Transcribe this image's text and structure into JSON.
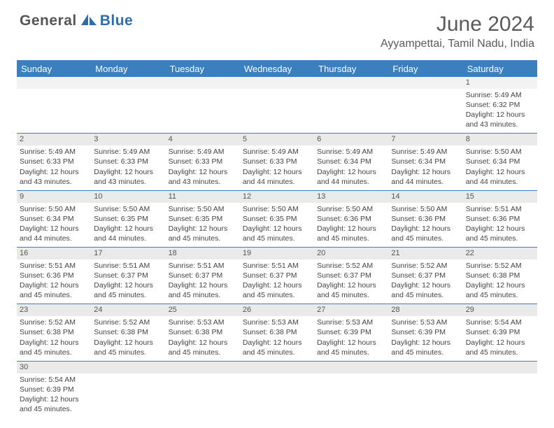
{
  "brand": {
    "part1": "General",
    "part2": "Blue"
  },
  "title": "June 2024",
  "location": "Ayyampettai, Tamil Nadu, India",
  "colors": {
    "header_bg": "#3b7fbf",
    "header_text": "#ffffff",
    "daynum_bg": "#eaeaea",
    "border": "#3b7fbf",
    "brand_gray": "#565656",
    "brand_blue": "#2f6da8",
    "text": "#444444"
  },
  "weekdays": [
    "Sunday",
    "Monday",
    "Tuesday",
    "Wednesday",
    "Thursday",
    "Friday",
    "Saturday"
  ],
  "weeks": [
    [
      null,
      null,
      null,
      null,
      null,
      null,
      {
        "n": "1",
        "sr": "5:49 AM",
        "ss": "6:32 PM",
        "dl": "12 hours and 43 minutes."
      }
    ],
    [
      {
        "n": "2",
        "sr": "5:49 AM",
        "ss": "6:33 PM",
        "dl": "12 hours and 43 minutes."
      },
      {
        "n": "3",
        "sr": "5:49 AM",
        "ss": "6:33 PM",
        "dl": "12 hours and 43 minutes."
      },
      {
        "n": "4",
        "sr": "5:49 AM",
        "ss": "6:33 PM",
        "dl": "12 hours and 43 minutes."
      },
      {
        "n": "5",
        "sr": "5:49 AM",
        "ss": "6:33 PM",
        "dl": "12 hours and 44 minutes."
      },
      {
        "n": "6",
        "sr": "5:49 AM",
        "ss": "6:34 PM",
        "dl": "12 hours and 44 minutes."
      },
      {
        "n": "7",
        "sr": "5:49 AM",
        "ss": "6:34 PM",
        "dl": "12 hours and 44 minutes."
      },
      {
        "n": "8",
        "sr": "5:50 AM",
        "ss": "6:34 PM",
        "dl": "12 hours and 44 minutes."
      }
    ],
    [
      {
        "n": "9",
        "sr": "5:50 AM",
        "ss": "6:34 PM",
        "dl": "12 hours and 44 minutes."
      },
      {
        "n": "10",
        "sr": "5:50 AM",
        "ss": "6:35 PM",
        "dl": "12 hours and 44 minutes."
      },
      {
        "n": "11",
        "sr": "5:50 AM",
        "ss": "6:35 PM",
        "dl": "12 hours and 45 minutes."
      },
      {
        "n": "12",
        "sr": "5:50 AM",
        "ss": "6:35 PM",
        "dl": "12 hours and 45 minutes."
      },
      {
        "n": "13",
        "sr": "5:50 AM",
        "ss": "6:36 PM",
        "dl": "12 hours and 45 minutes."
      },
      {
        "n": "14",
        "sr": "5:50 AM",
        "ss": "6:36 PM",
        "dl": "12 hours and 45 minutes."
      },
      {
        "n": "15",
        "sr": "5:51 AM",
        "ss": "6:36 PM",
        "dl": "12 hours and 45 minutes."
      }
    ],
    [
      {
        "n": "16",
        "sr": "5:51 AM",
        "ss": "6:36 PM",
        "dl": "12 hours and 45 minutes."
      },
      {
        "n": "17",
        "sr": "5:51 AM",
        "ss": "6:37 PM",
        "dl": "12 hours and 45 minutes."
      },
      {
        "n": "18",
        "sr": "5:51 AM",
        "ss": "6:37 PM",
        "dl": "12 hours and 45 minutes."
      },
      {
        "n": "19",
        "sr": "5:51 AM",
        "ss": "6:37 PM",
        "dl": "12 hours and 45 minutes."
      },
      {
        "n": "20",
        "sr": "5:52 AM",
        "ss": "6:37 PM",
        "dl": "12 hours and 45 minutes."
      },
      {
        "n": "21",
        "sr": "5:52 AM",
        "ss": "6:37 PM",
        "dl": "12 hours and 45 minutes."
      },
      {
        "n": "22",
        "sr": "5:52 AM",
        "ss": "6:38 PM",
        "dl": "12 hours and 45 minutes."
      }
    ],
    [
      {
        "n": "23",
        "sr": "5:52 AM",
        "ss": "6:38 PM",
        "dl": "12 hours and 45 minutes."
      },
      {
        "n": "24",
        "sr": "5:52 AM",
        "ss": "6:38 PM",
        "dl": "12 hours and 45 minutes."
      },
      {
        "n": "25",
        "sr": "5:53 AM",
        "ss": "6:38 PM",
        "dl": "12 hours and 45 minutes."
      },
      {
        "n": "26",
        "sr": "5:53 AM",
        "ss": "6:38 PM",
        "dl": "12 hours and 45 minutes."
      },
      {
        "n": "27",
        "sr": "5:53 AM",
        "ss": "6:39 PM",
        "dl": "12 hours and 45 minutes."
      },
      {
        "n": "28",
        "sr": "5:53 AM",
        "ss": "6:39 PM",
        "dl": "12 hours and 45 minutes."
      },
      {
        "n": "29",
        "sr": "5:54 AM",
        "ss": "6:39 PM",
        "dl": "12 hours and 45 minutes."
      }
    ],
    [
      {
        "n": "30",
        "sr": "5:54 AM",
        "ss": "6:39 PM",
        "dl": "12 hours and 45 minutes."
      },
      null,
      null,
      null,
      null,
      null,
      null
    ]
  ],
  "labels": {
    "sunrise": "Sunrise: ",
    "sunset": "Sunset: ",
    "daylight": "Daylight: "
  }
}
